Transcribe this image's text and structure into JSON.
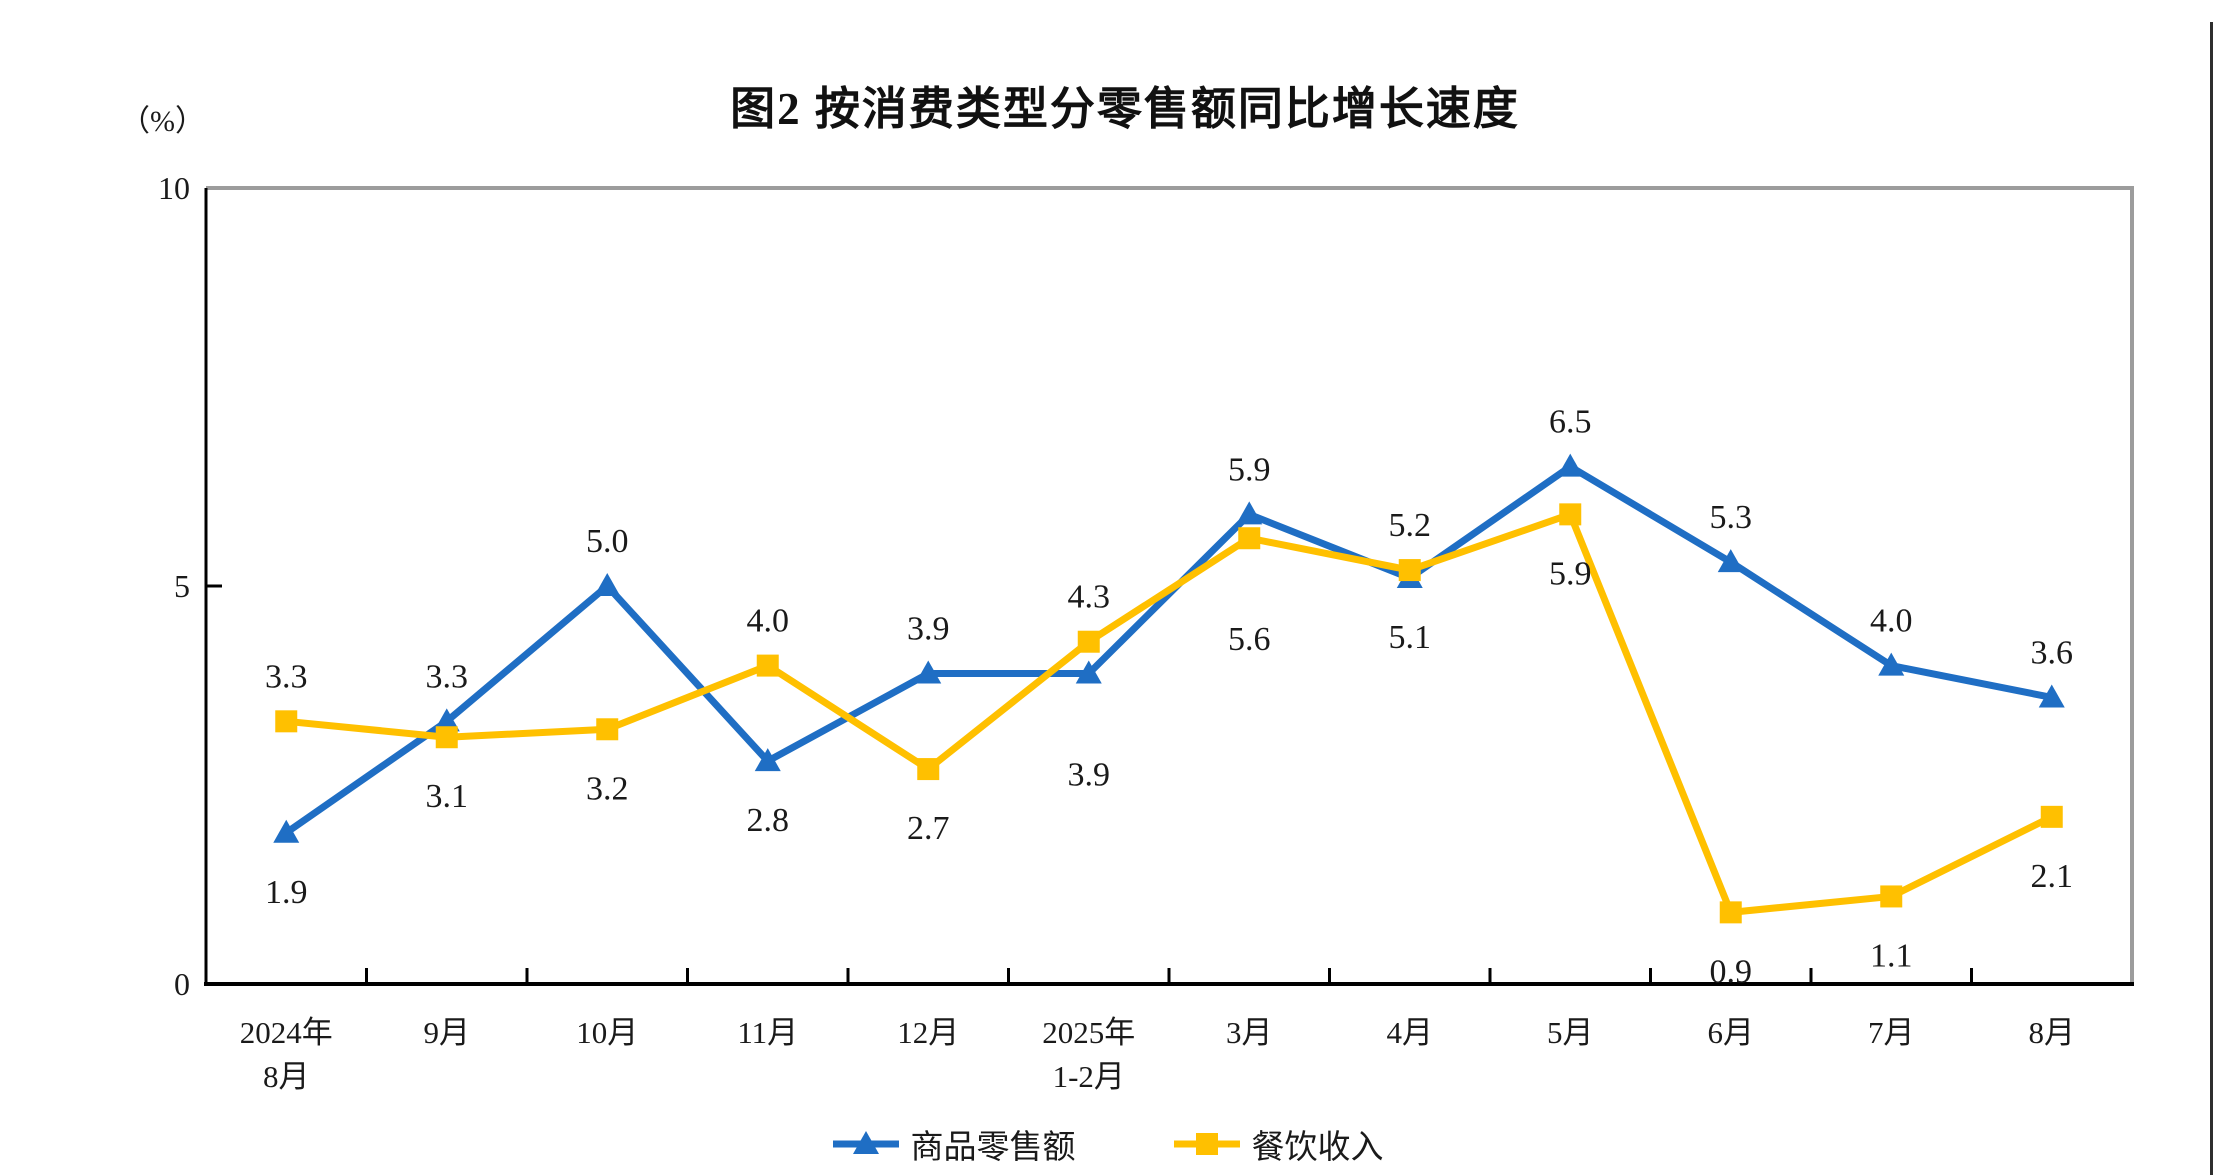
{
  "chart_data": {
    "type": "line",
    "title": "图2 按消费类型分零售额同比增长速度",
    "unit_label": "（%）",
    "categories": [
      "2024年\n8月",
      "9月",
      "10月",
      "11月",
      "12月",
      "2025年\n1-2月",
      "3月",
      "4月",
      "5月",
      "6月",
      "7月",
      "8月"
    ],
    "y_axis": {
      "min": 0,
      "max": 10,
      "ticks": [
        0,
        5,
        10
      ]
    },
    "grid": false,
    "legend_position": "bottom",
    "colors": {
      "axis": "#000000",
      "plot_border": "#9C9C9C",
      "label_text": "#1a1a1a"
    },
    "series": [
      {
        "name": "商品零售额",
        "color": "#1F6EC4",
        "marker": "triangle",
        "values": [
          1.9,
          3.3,
          5.0,
          2.8,
          3.9,
          3.9,
          5.9,
          5.1,
          6.5,
          5.3,
          4.0,
          3.6
        ],
        "label_positions": [
          "below",
          "above",
          "above",
          "below",
          "above",
          "below-far",
          "above",
          "below",
          "above",
          "above",
          "above",
          "above"
        ]
      },
      {
        "name": "餐饮收入",
        "color": "#FFC000",
        "marker": "square",
        "values": [
          3.3,
          3.1,
          3.2,
          4.0,
          2.7,
          4.3,
          5.6,
          5.2,
          5.9,
          0.9,
          1.1,
          2.1
        ],
        "label_positions": [
          "above",
          "below",
          "below",
          "above",
          "below",
          "above",
          "below-far",
          "above",
          "below",
          "below",
          "below",
          "below"
        ]
      }
    ]
  }
}
